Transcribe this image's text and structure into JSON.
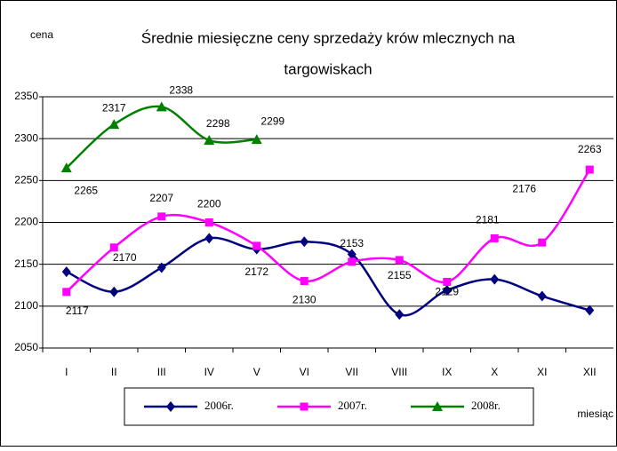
{
  "chart_data": {
    "type": "line",
    "title": [
      "Średnie miesięczne ceny sprzedaży krów mlecznych na",
      "targowiskach"
    ],
    "y_label": "cena",
    "x_label": "miesiąc",
    "categories": [
      "I",
      "II",
      "III",
      "IV",
      "V",
      "VI",
      "VII",
      "VIII",
      "IX",
      "X",
      "XI",
      "XII"
    ],
    "series": [
      {
        "name": "2006r.",
        "color": "#000080",
        "marker": "diamond",
        "values": [
          2141,
          2117,
          2146,
          2181,
          2168,
          2177,
          2162,
          2090,
          2119,
          2132,
          2112,
          2095
        ]
      },
      {
        "name": "2007r.",
        "color": "#ff00ff",
        "marker": "square",
        "values": [
          2117,
          2170,
          2207,
          2200,
          2172,
          2130,
          2153,
          2155,
          2129,
          2181,
          2176,
          2263
        ]
      },
      {
        "name": "2008r.",
        "color": "#008000",
        "marker": "triangle",
        "values": [
          2265,
          2317,
          2338,
          2298,
          2299,
          null,
          null,
          null,
          null,
          null,
          null,
          null
        ]
      }
    ],
    "ylim": [
      2050,
      2350
    ],
    "yticks": [
      2050,
      2100,
      2150,
      2200,
      2250,
      2300,
      2350
    ],
    "grid": true
  }
}
